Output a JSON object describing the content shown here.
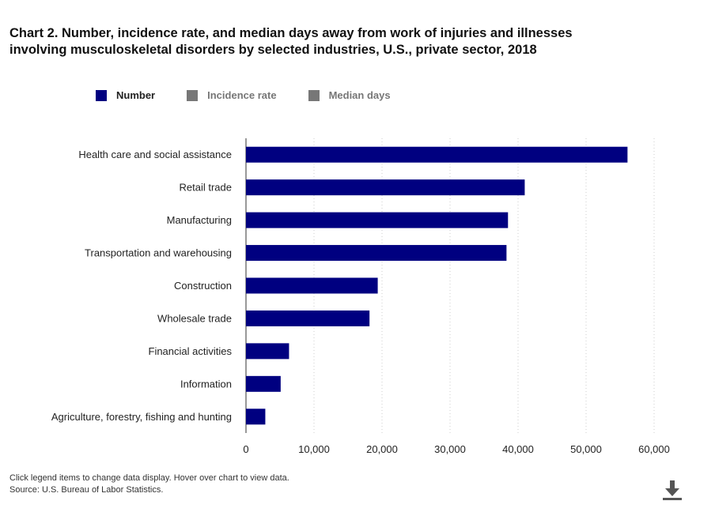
{
  "title_line1": "Chart 2. Number, incidence rate, and median days away from work of injuries and illnesses",
  "title_line2": "involving musculoskeletal disorders by selected industries, U.S., private sector, 2018",
  "legend": [
    {
      "label": "Number",
      "color": "#000080",
      "active": true
    },
    {
      "label": "Incidence rate",
      "color": "#777777",
      "active": false
    },
    {
      "label": "Median days",
      "color": "#777777",
      "active": false
    }
  ],
  "footer": {
    "note": "Click legend items to change data display. Hover over chart to view data.",
    "source": "Source: U.S. Bureau of Labor Statistics."
  },
  "icons": {
    "download": "download-icon"
  },
  "colors": {
    "bar": "#000080",
    "grid": "#cccccc"
  },
  "chart_data": {
    "type": "bar",
    "orientation": "horizontal",
    "categories": [
      "Health care and social assistance",
      "Retail trade",
      "Manufacturing",
      "Transportation and warehousing",
      "Construction",
      "Wholesale trade",
      "Financial activities",
      "Information",
      "Agriculture, forestry, fishing and hunting"
    ],
    "series": [
      {
        "name": "Number",
        "values": [
          56090,
          40980,
          38520,
          38300,
          19370,
          18160,
          6330,
          5100,
          2840
        ]
      }
    ],
    "xlim": [
      0,
      60000
    ],
    "xticks": [
      0,
      10000,
      20000,
      30000,
      40000,
      50000,
      60000
    ],
    "xtick_labels": [
      "0",
      "10,000",
      "20,000",
      "30,000",
      "40,000",
      "50,000",
      "60,000"
    ],
    "grid": true,
    "legend_position": "top-left"
  }
}
